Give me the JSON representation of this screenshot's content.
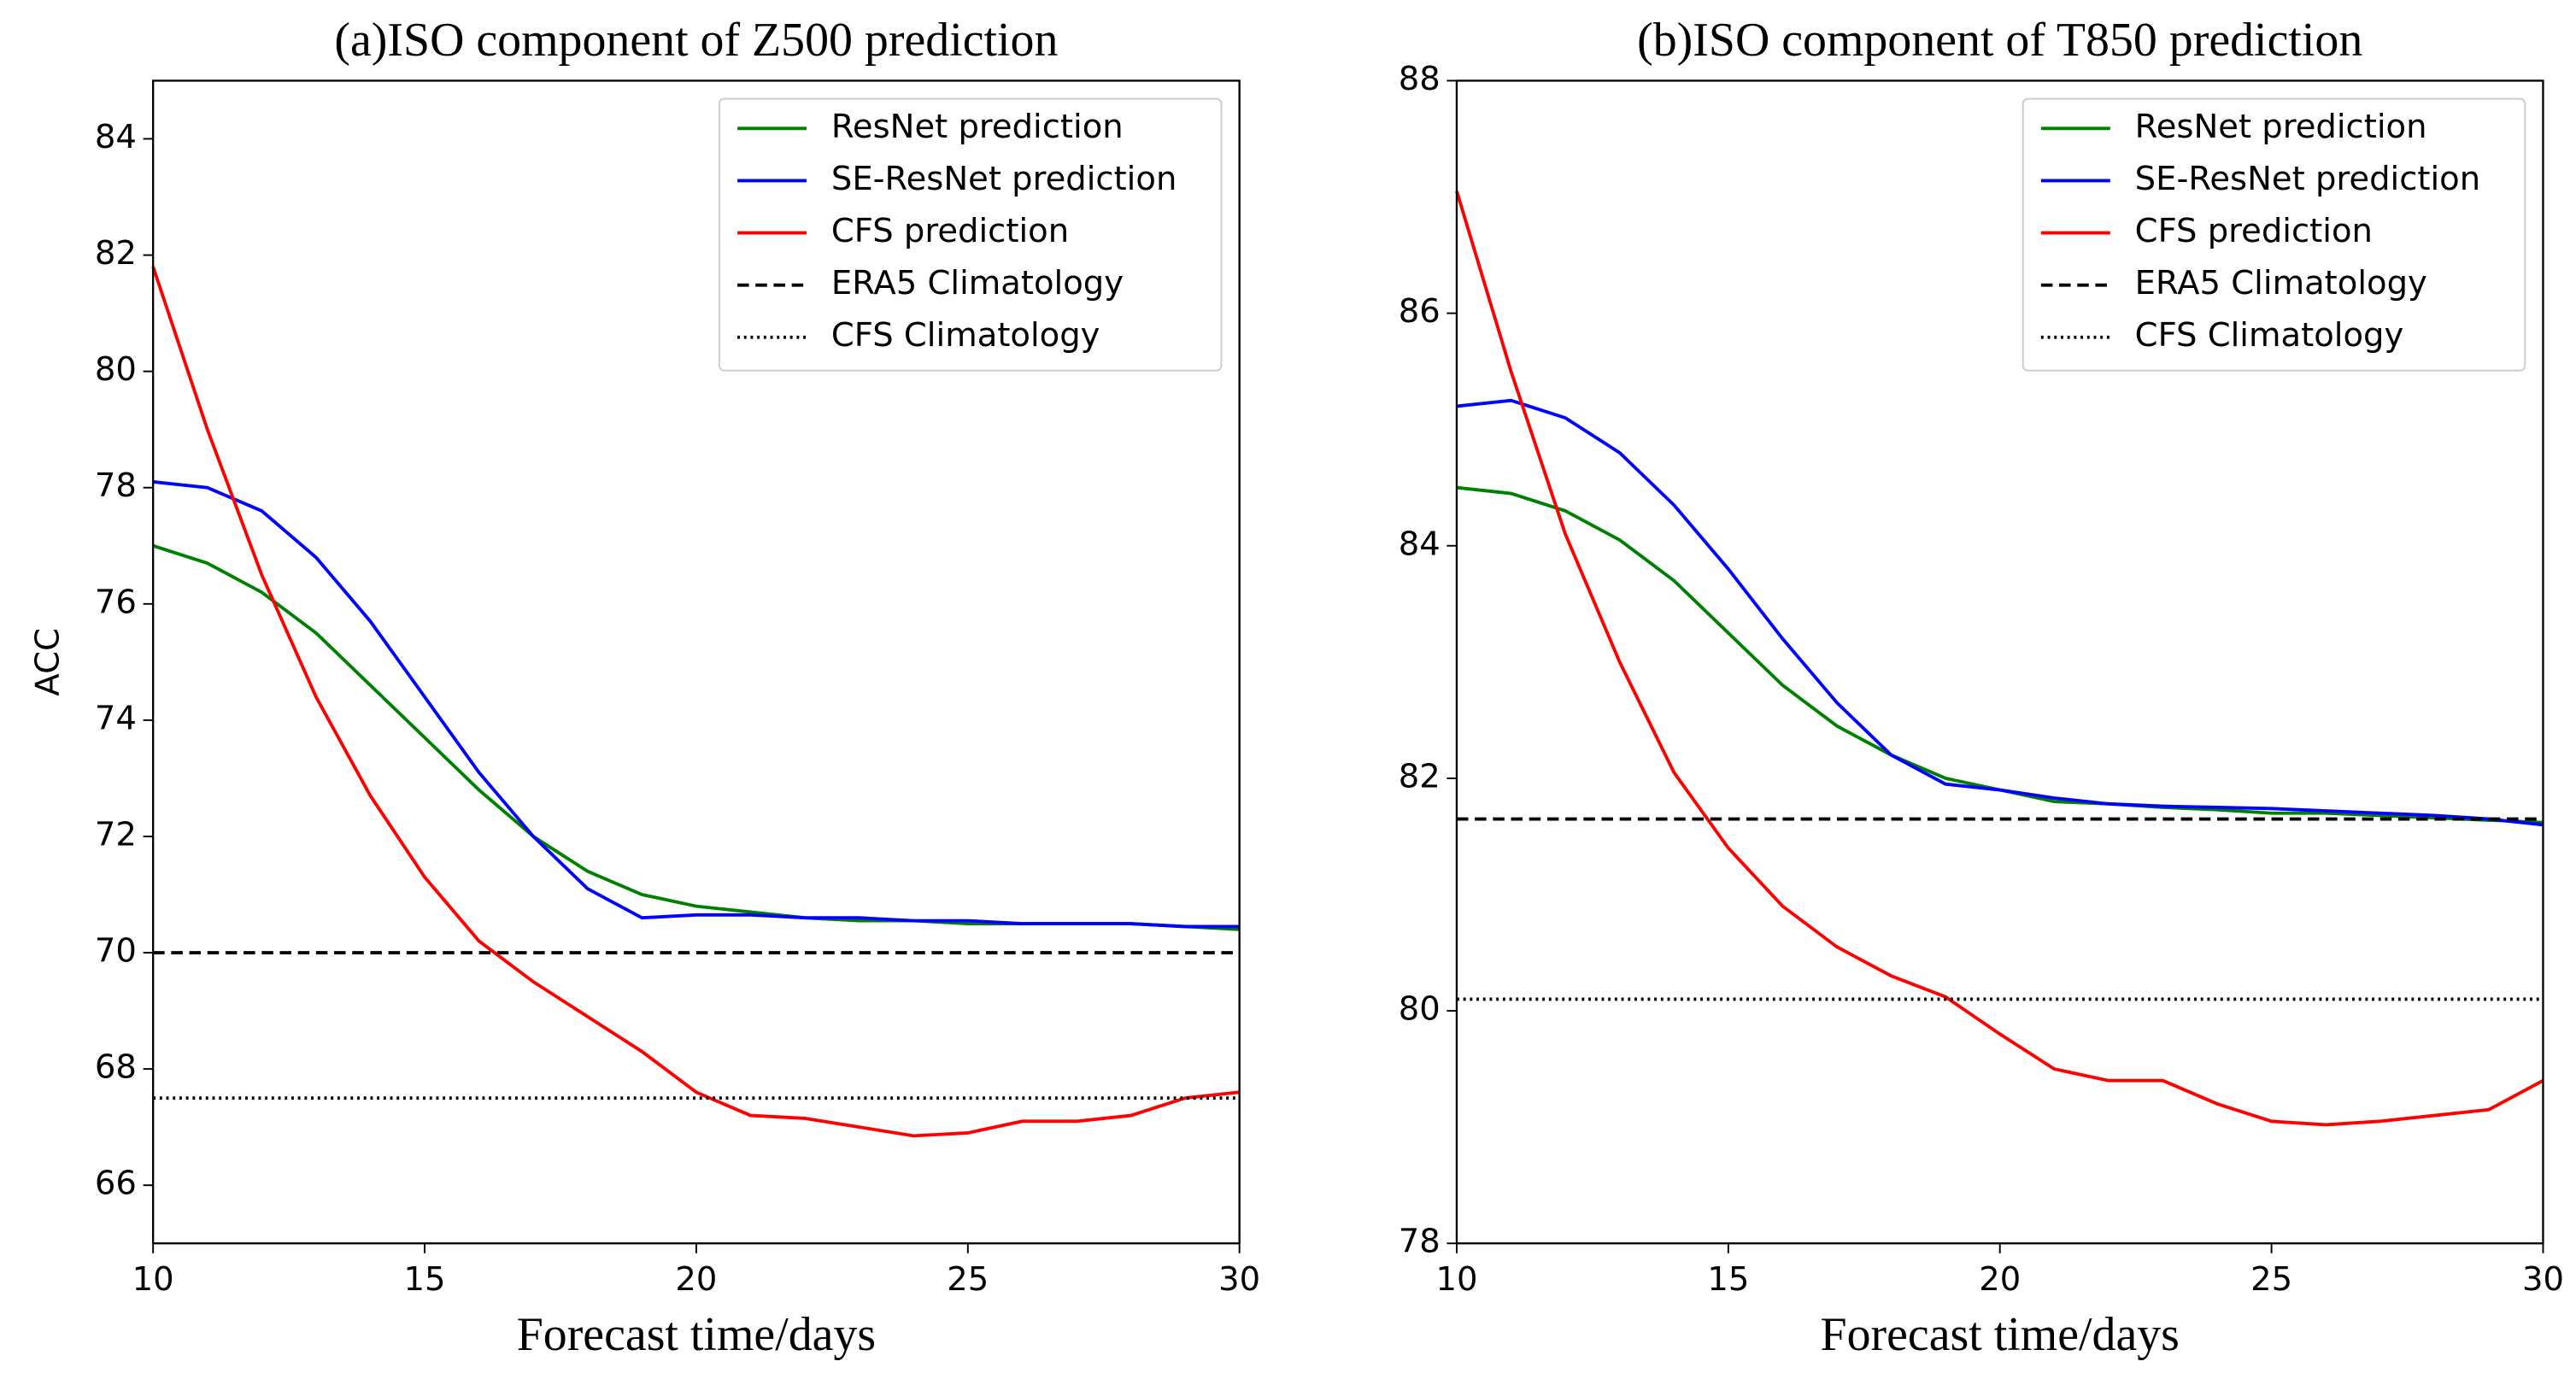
{
  "chart_data": [
    {
      "type": "line",
      "title": "(a)ISO component of Z500 prediction",
      "xlabel": "Forecast time/days",
      "ylabel": "ACC",
      "x": [
        10,
        11,
        12,
        13,
        14,
        15,
        16,
        17,
        18,
        19,
        20,
        21,
        22,
        23,
        24,
        25,
        26,
        27,
        28,
        29,
        30
      ],
      "xlim": [
        10,
        30
      ],
      "ylim": [
        65,
        85
      ],
      "xticks": [
        10,
        15,
        20,
        25,
        30
      ],
      "yticks": [
        66,
        68,
        70,
        72,
        74,
        76,
        78,
        80,
        82,
        84
      ],
      "legend": "upper right",
      "series": [
        {
          "name": "ResNet prediction",
          "color": "#008000",
          "linestyle": "solid",
          "values": [
            77.0,
            76.7,
            76.2,
            75.5,
            74.6,
            73.7,
            72.8,
            72.0,
            71.4,
            71.0,
            70.8,
            70.7,
            70.6,
            70.55,
            70.55,
            70.5,
            70.5,
            70.5,
            70.5,
            70.45,
            70.4
          ]
        },
        {
          "name": "SE-ResNet prediction",
          "color": "#0000ff",
          "linestyle": "solid",
          "values": [
            78.1,
            78.0,
            77.6,
            76.8,
            75.7,
            74.4,
            73.1,
            72.0,
            71.1,
            70.6,
            70.65,
            70.65,
            70.6,
            70.6,
            70.55,
            70.55,
            70.5,
            70.5,
            70.5,
            70.45,
            70.45
          ]
        },
        {
          "name": "CFS prediction",
          "color": "#ff0000",
          "linestyle": "solid",
          "values": [
            81.8,
            79.0,
            76.5,
            74.4,
            72.7,
            71.3,
            70.2,
            69.5,
            68.9,
            68.3,
            67.6,
            67.2,
            67.15,
            67.0,
            66.85,
            66.9,
            67.1,
            67.1,
            67.2,
            67.5,
            67.6
          ]
        },
        {
          "name": "ERA5 Climatology",
          "color": "#000000",
          "linestyle": "dashed",
          "value": 70.0
        },
        {
          "name": "CFS Climatology",
          "color": "#000000",
          "linestyle": "dotted",
          "value": 67.5
        }
      ]
    },
    {
      "type": "line",
      "title": "(b)ISO component of T850 prediction",
      "xlabel": "Forecast time/days",
      "x": [
        10,
        11,
        12,
        13,
        14,
        15,
        16,
        17,
        18,
        19,
        20,
        21,
        22,
        23,
        24,
        25,
        26,
        27,
        28,
        29,
        30
      ],
      "xlim": [
        10,
        30
      ],
      "ylim": [
        78,
        88
      ],
      "xticks": [
        10,
        15,
        20,
        25,
        30
      ],
      "yticks": [
        78,
        80,
        82,
        84,
        86,
        88
      ],
      "legend": "upper right",
      "series": [
        {
          "name": "ResNet prediction",
          "color": "#008000",
          "linestyle": "solid",
          "values": [
            84.5,
            84.45,
            84.3,
            84.05,
            83.7,
            83.25,
            82.8,
            82.45,
            82.2,
            82.0,
            81.9,
            81.8,
            81.78,
            81.75,
            81.73,
            81.7,
            81.7,
            81.68,
            81.66,
            81.64,
            81.62
          ]
        },
        {
          "name": "SE-ResNet prediction",
          "color": "#0000ff",
          "linestyle": "solid",
          "values": [
            85.2,
            85.25,
            85.1,
            84.8,
            84.35,
            83.8,
            83.2,
            82.65,
            82.2,
            81.95,
            81.9,
            81.83,
            81.78,
            81.76,
            81.75,
            81.74,
            81.72,
            81.7,
            81.68,
            81.65,
            81.6
          ]
        },
        {
          "name": "CFS prediction",
          "color": "#ff0000",
          "linestyle": "solid",
          "values": [
            87.05,
            85.5,
            84.1,
            83.0,
            82.05,
            81.4,
            80.9,
            80.55,
            80.3,
            80.12,
            79.8,
            79.5,
            79.4,
            79.4,
            79.2,
            79.05,
            79.02,
            79.05,
            79.1,
            79.15,
            79.4
          ]
        },
        {
          "name": "ERA5 Climatology",
          "color": "#000000",
          "linestyle": "dashed",
          "value": 81.65
        },
        {
          "name": "CFS Climatology",
          "color": "#000000",
          "linestyle": "dotted",
          "value": 80.1
        }
      ]
    }
  ]
}
